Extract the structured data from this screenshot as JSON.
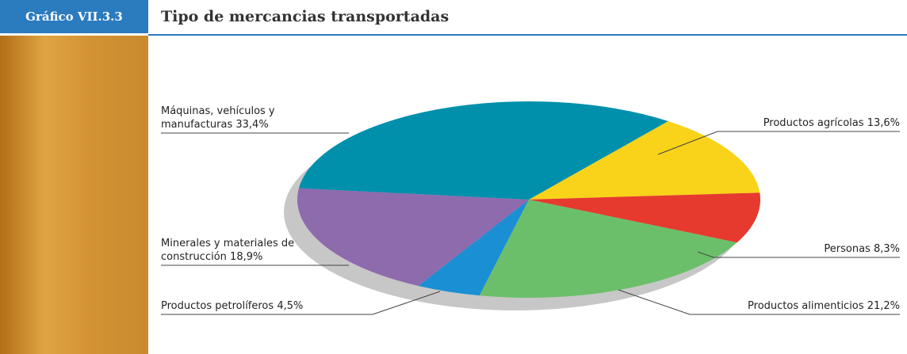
{
  "header": {
    "label": "Gráfico VII.3.3"
  },
  "chart_data": {
    "type": "pie",
    "title": "Tipo de mercancias transportadas",
    "categories": [
      "Productos agrícolas",
      "Personas",
      "Productos alimenticios",
      "Productos petrolíferos",
      "Minerales y materiales de construcción",
      "Máquinas, vehículos y manufacturas"
    ],
    "values": [
      13.6,
      8.3,
      21.2,
      4.5,
      18.9,
      33.4
    ],
    "value_labels": [
      "13,6%",
      "8,3%",
      "21,2%",
      "4,5%",
      "18,9%",
      "33,4%"
    ],
    "colors": [
      "#f9d31a",
      "#e63a2e",
      "#6cbf6a",
      "#1a8fd4",
      "#8e6bad",
      "#0090ac"
    ]
  }
}
